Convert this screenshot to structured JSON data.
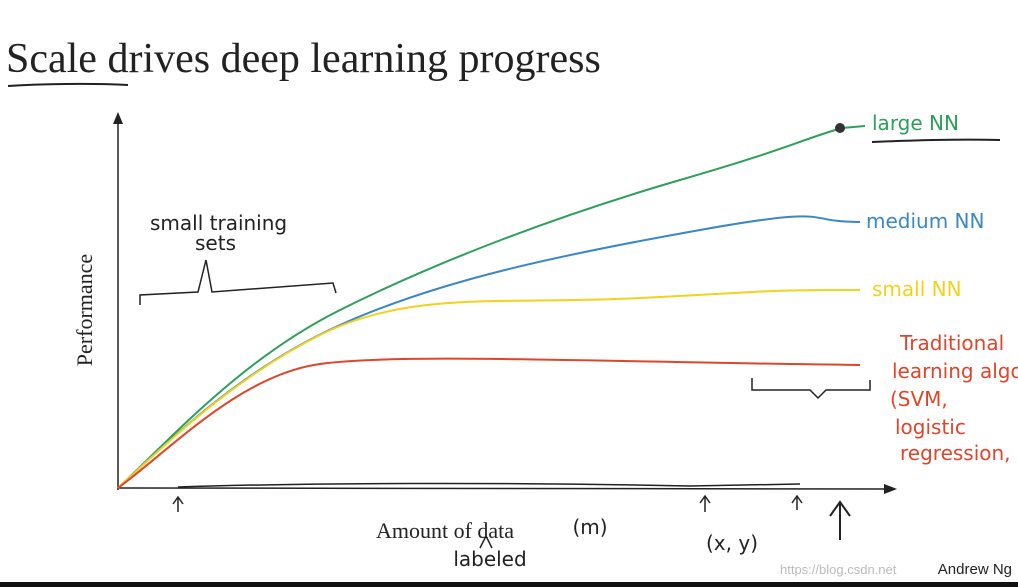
{
  "title": "Scale drives deep learning progress",
  "y_axis_label": "Performance",
  "x_axis_label": "Amount of data",
  "x_axis_symbol": "(m)",
  "x_axis_note": "labeled",
  "pair_note": "(x, y)",
  "bracket_note": {
    "line1": "small training",
    "line2": "sets"
  },
  "curves": [
    {
      "label": "large NN"
    },
    {
      "label": "medium NN"
    },
    {
      "label": "small NN"
    },
    {
      "label": {
        "line1": "Traditional",
        "line2": "learning algo",
        "line3": "(SVM,",
        "line4": "logistic",
        "line5": "regression, ...)"
      }
    }
  ],
  "author": "Andrew Ng",
  "watermark": "https://blog.csdn.net"
}
